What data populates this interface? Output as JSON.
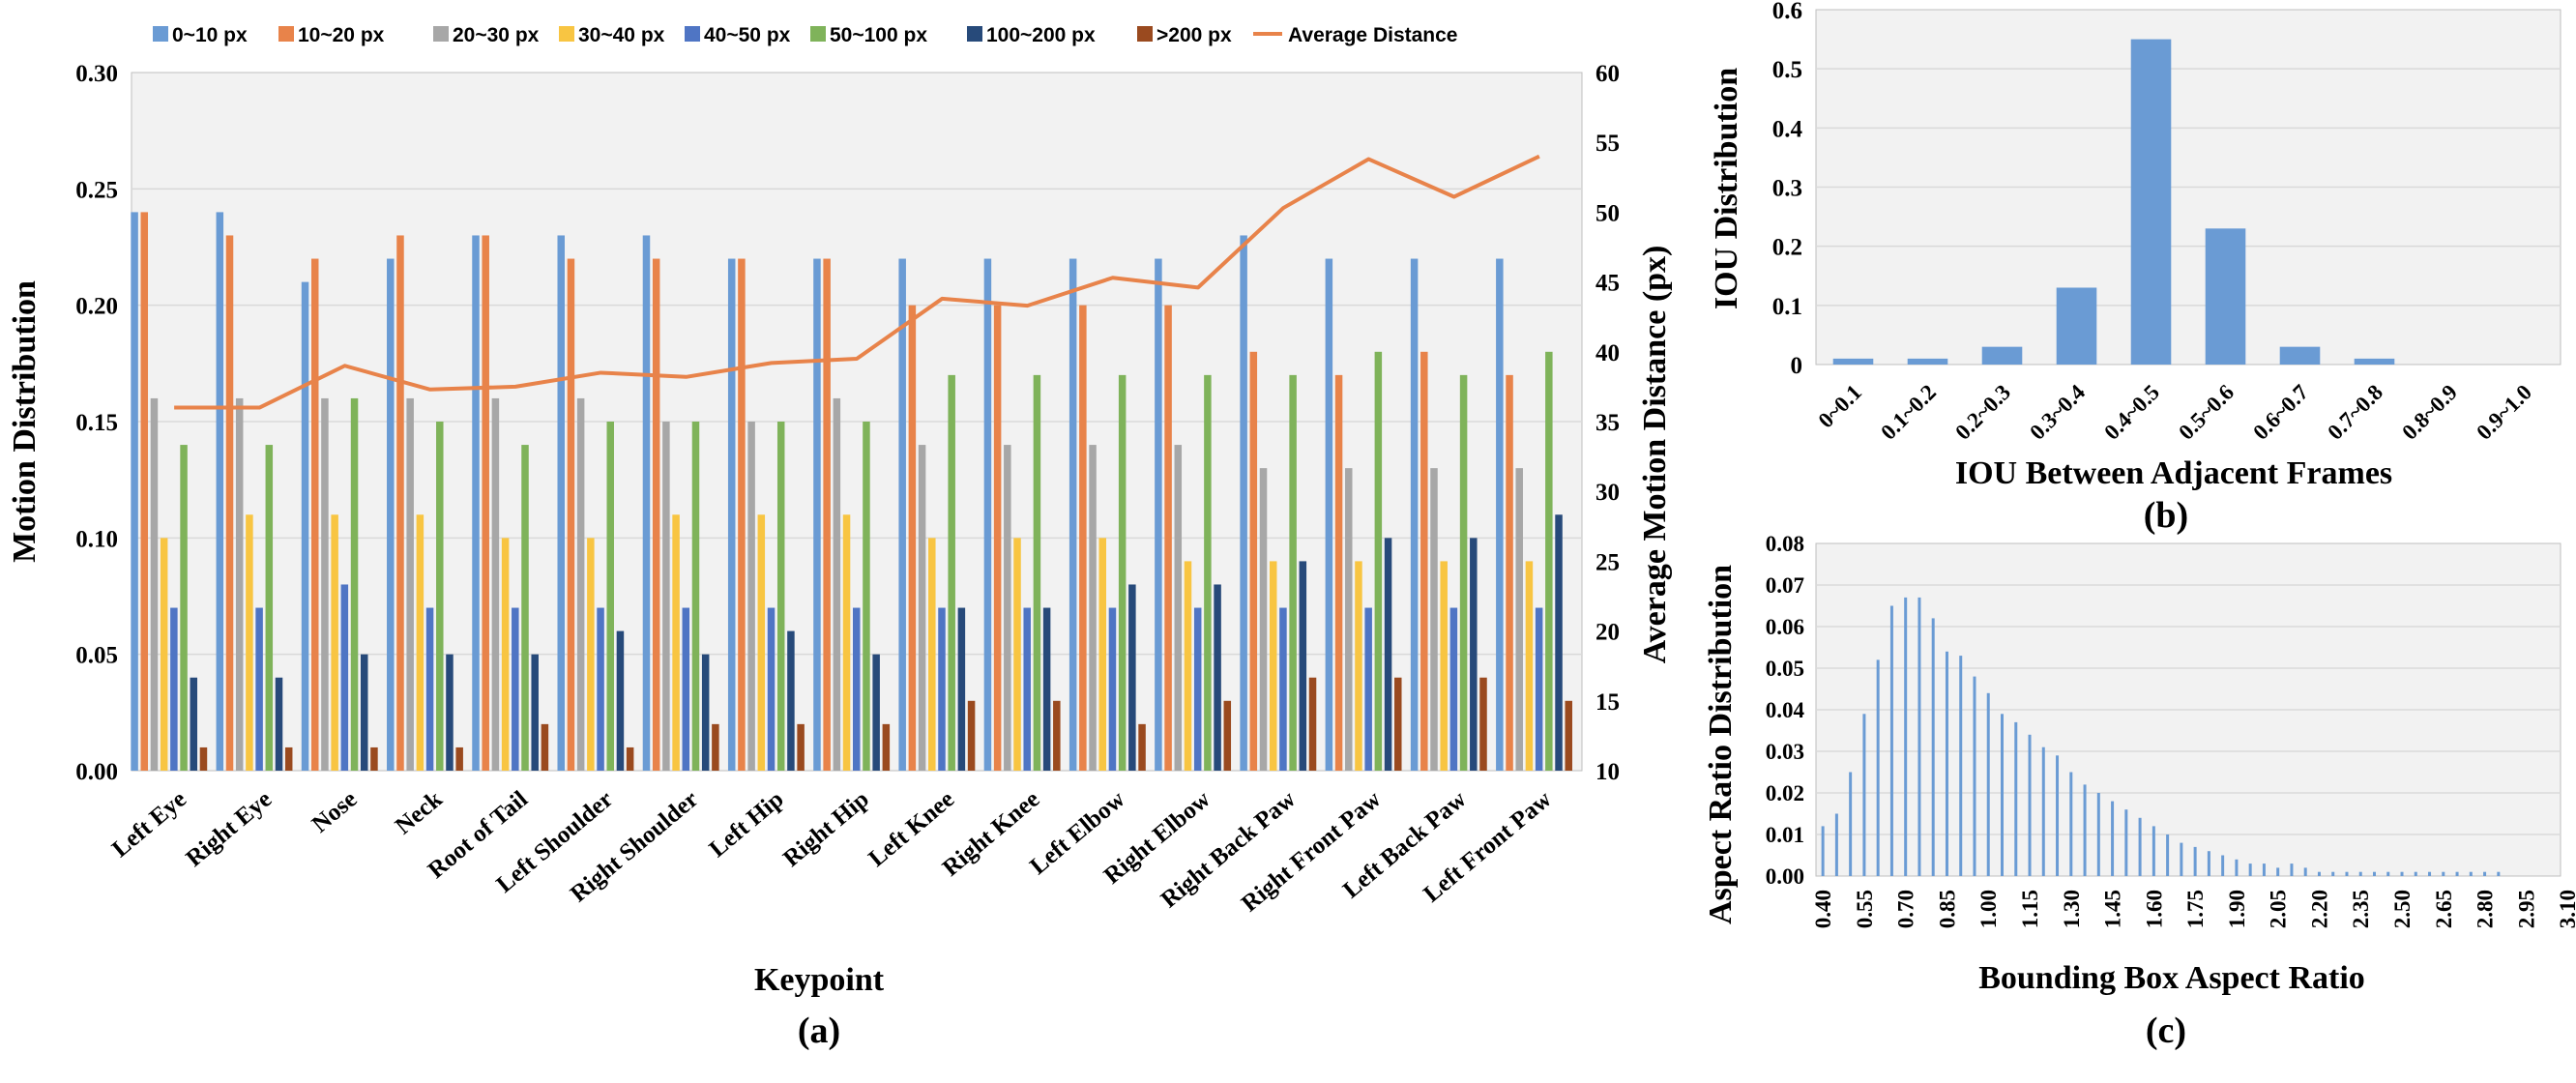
{
  "chart_data": [
    {
      "panel": "(a)",
      "type": "bar",
      "xlabel": "Keypoint",
      "ylabel": "Motion Distribution",
      "y2label": "Average Motion  Distance (px)",
      "ylim": [
        0,
        0.3
      ],
      "y2lim": [
        10,
        60
      ],
      "y_ticks": [
        "0.00",
        "0.05",
        "0.10",
        "0.15",
        "0.20",
        "0.25",
        "0.30"
      ],
      "y2_ticks": [
        "10",
        "15",
        "20",
        "25",
        "30",
        "35",
        "40",
        "45",
        "50",
        "55",
        "60"
      ],
      "categories": [
        "Left Eye",
        "Right Eye",
        "Nose",
        "Neck",
        "Root of Tail",
        "Left Shoulder",
        "Right Shoulder",
        "Left Hip",
        "Right Hip",
        "Left Knee",
        "Right Knee",
        "Left Elbow",
        "Right Elbow",
        "Right Back Paw",
        "Right Front Paw",
        "Left Back Paw",
        "Left Front Paw"
      ],
      "series": [
        {
          "name": "0~10 px",
          "color": "#6a9bd4",
          "values": [
            0.24,
            0.24,
            0.21,
            0.22,
            0.23,
            0.23,
            0.23,
            0.22,
            0.22,
            0.22,
            0.22,
            0.22,
            0.22,
            0.23,
            0.22,
            0.22,
            0.22
          ]
        },
        {
          "name": "10~20 px",
          "color": "#e8834a",
          "values": [
            0.24,
            0.23,
            0.22,
            0.23,
            0.23,
            0.22,
            0.22,
            0.22,
            0.22,
            0.2,
            0.2,
            0.2,
            0.2,
            0.18,
            0.17,
            0.18,
            0.17
          ]
        },
        {
          "name": "20~30 px",
          "color": "#a7a7a7",
          "values": [
            0.16,
            0.16,
            0.16,
            0.16,
            0.16,
            0.16,
            0.15,
            0.15,
            0.16,
            0.14,
            0.14,
            0.14,
            0.14,
            0.13,
            0.13,
            0.13,
            0.13
          ]
        },
        {
          "name": "30~40 px",
          "color": "#f8c542",
          "values": [
            0.1,
            0.11,
            0.11,
            0.11,
            0.1,
            0.1,
            0.11,
            0.11,
            0.11,
            0.1,
            0.1,
            0.1,
            0.09,
            0.09,
            0.09,
            0.09,
            0.09
          ]
        },
        {
          "name": "40~50 px",
          "color": "#4f75c4",
          "values": [
            0.07,
            0.07,
            0.08,
            0.07,
            0.07,
            0.07,
            0.07,
            0.07,
            0.07,
            0.07,
            0.07,
            0.07,
            0.07,
            0.07,
            0.07,
            0.07,
            0.07
          ]
        },
        {
          "name": "50~100 px",
          "color": "#7fb35a",
          "values": [
            0.14,
            0.14,
            0.16,
            0.15,
            0.14,
            0.15,
            0.15,
            0.15,
            0.15,
            0.17,
            0.17,
            0.17,
            0.17,
            0.17,
            0.18,
            0.17,
            0.18
          ]
        },
        {
          "name": "100~200 px",
          "color": "#274a7a",
          "values": [
            0.04,
            0.04,
            0.05,
            0.05,
            0.05,
            0.06,
            0.05,
            0.06,
            0.05,
            0.07,
            0.07,
            0.08,
            0.08,
            0.09,
            0.1,
            0.1,
            0.11
          ]
        },
        {
          "name": ">200 px",
          "color": "#9a4a1f",
          "values": [
            0.01,
            0.01,
            0.01,
            0.01,
            0.02,
            0.01,
            0.02,
            0.02,
            0.02,
            0.03,
            0.03,
            0.02,
            0.03,
            0.04,
            0.04,
            0.04,
            0.03
          ]
        }
      ],
      "line": {
        "name": "Average Distance",
        "color": "#e8834a",
        "axis": "right",
        "values": [
          36.0,
          36.0,
          39.0,
          37.3,
          37.5,
          38.5,
          38.2,
          39.2,
          39.5,
          43.8,
          43.3,
          45.3,
          44.6,
          50.3,
          53.8,
          51.1,
          54.0
        ]
      }
    },
    {
      "panel": "(b)",
      "type": "bar",
      "xlabel": "IOU Between Adjacent Frames",
      "ylabel": "IOU Distribution",
      "ylim": [
        0,
        0.6
      ],
      "y_ticks": [
        "0",
        "0.1",
        "0.2",
        "0.3",
        "0.4",
        "0.5",
        "0.6"
      ],
      "categories": [
        "0~0.1",
        "0.1~0.2",
        "0.2~0.3",
        "0.3~0.4",
        "0.4~0.5",
        "0.5~0.6",
        "0.6~0.7",
        "0.7~0.8",
        "0.8~0.9",
        "0.9~1.0"
      ],
      "values": [
        0.01,
        0.01,
        0.03,
        0.13,
        0.55,
        0.23,
        0.03,
        0.01,
        0.0,
        0.0
      ],
      "color": "#6a9bd4"
    },
    {
      "panel": "(c)",
      "type": "bar",
      "xlabel": "Bounding Box Aspect Ratio",
      "ylabel": "Aspect Ratio Distribution",
      "ylim": [
        0,
        0.08
      ],
      "y_ticks": [
        "0.00",
        "0.01",
        "0.02",
        "0.03",
        "0.04",
        "0.05",
        "0.06",
        "0.07",
        "0.08"
      ],
      "x_tick_labels": [
        "0.40",
        "0.55",
        "0.70",
        "0.85",
        "1.00",
        "1.15",
        "1.30",
        "1.45",
        "1.60",
        "1.75",
        "1.90",
        "2.05",
        "2.20",
        "2.35",
        "2.50",
        "2.65",
        "2.80",
        "2.95",
        "3.10"
      ],
      "x_start": 0.4,
      "x_step": 0.05,
      "values": [
        0.012,
        0.015,
        0.025,
        0.039,
        0.052,
        0.065,
        0.067,
        0.067,
        0.062,
        0.054,
        0.053,
        0.048,
        0.044,
        0.039,
        0.037,
        0.034,
        0.031,
        0.029,
        0.025,
        0.022,
        0.02,
        0.018,
        0.016,
        0.014,
        0.012,
        0.01,
        0.008,
        0.007,
        0.006,
        0.005,
        0.004,
        0.003,
        0.003,
        0.002,
        0.003,
        0.002,
        0.001,
        0.001,
        0.001,
        0.001,
        0.001,
        0.001,
        0.001,
        0.001,
        0.001,
        0.001,
        0.001,
        0.001,
        0.001,
        0.001,
        0.0,
        0.0,
        0.0,
        0.0
      ],
      "color": "#6a9bd4"
    }
  ]
}
